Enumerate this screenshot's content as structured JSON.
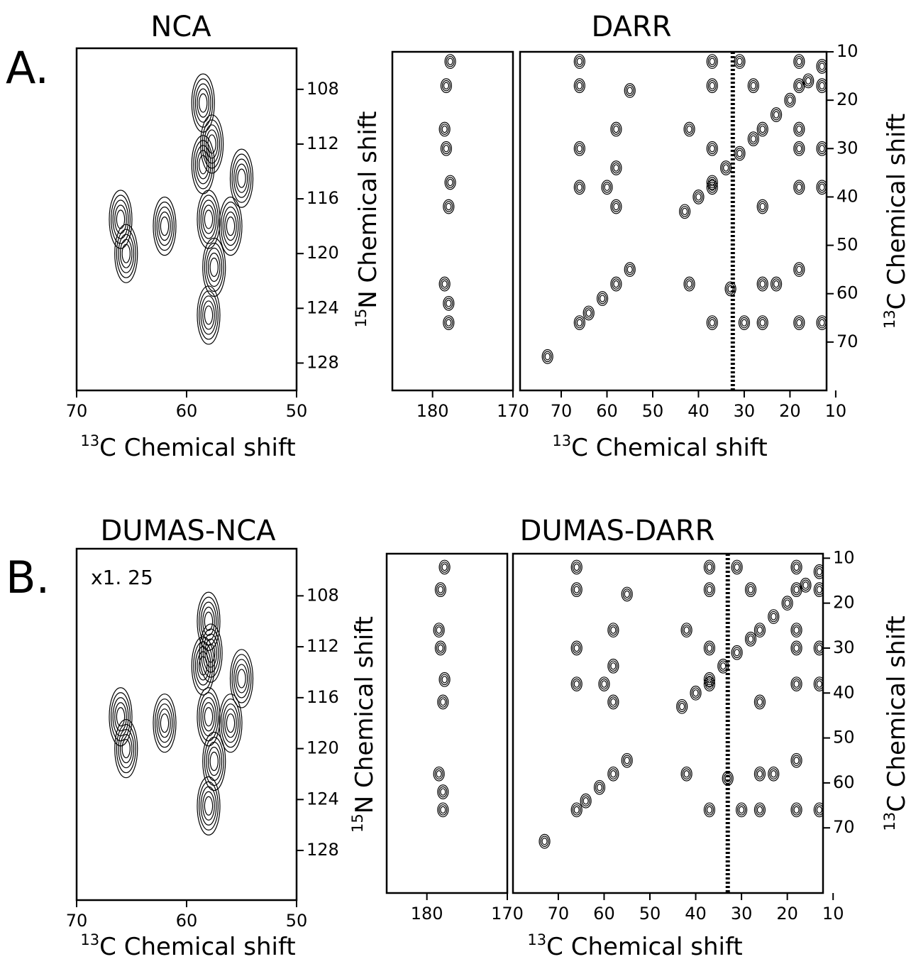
{
  "chart_data": [
    {
      "type": "contour",
      "panel_label": "A.",
      "title": "NCA",
      "xlabel_sup": "13",
      "xlabel": "C Chemical shift",
      "ylabel_sup": "15",
      "ylabel": "N Chemical shift",
      "xlim": [
        70,
        50
      ],
      "xticks": [
        70,
        60,
        50
      ],
      "ylim": [
        105,
        130
      ],
      "yticks": [
        108,
        112,
        116,
        120,
        124,
        128
      ],
      "color": "#000000",
      "peaks": {
        "x": [
          66,
          65.5,
          62,
          58,
          58.5,
          57.5,
          55,
          56,
          58.5,
          57.7,
          58
        ],
        "y": [
          117.5,
          120,
          118,
          117.5,
          113.5,
          121,
          114.5,
          118,
          109,
          112,
          124.5
        ]
      }
    },
    {
      "type": "contour",
      "title": "DARR",
      "xlabel_sup": "13",
      "xlabel": "C Chemical shift",
      "ylabel_sup": "13",
      "ylabel": "C Chemical shift",
      "ylim": [
        10,
        80
      ],
      "yticks": [
        10,
        20,
        30,
        40,
        50,
        60,
        70
      ],
      "color": "#000000",
      "ridge_x": 32.5,
      "panels": [
        {
          "xlim": [
            185,
            170
          ],
          "xticks": [
            180,
            170
          ],
          "peaks": {
            "x": [
              177.8,
              178.3,
              178.5,
              178.3,
              177.8,
              178,
              178.5,
              178,
              178
            ],
            "y": [
              12,
              17,
              26,
              30,
              37,
              42,
              58,
              62,
              66
            ]
          }
        },
        {
          "xlim": [
            79,
            12
          ],
          "xticks": [
            70,
            60,
            50,
            40,
            30,
            20,
            10
          ],
          "peaks": {
            "x": [
              66,
              66,
              55,
              58,
              66,
              58,
              66,
              58,
              60,
              42,
              37,
              37,
              37,
              37,
              42,
              37,
              31,
              28,
              26,
              23,
              26,
              26,
              18,
              18,
              18,
              18,
              18,
              13,
              13,
              13,
              18,
              18,
              13,
              30,
              33,
              73,
              13,
              16,
              20,
              23,
              26,
              28,
              31,
              34,
              37,
              40,
              43,
              55,
              58,
              61,
              64,
              66
            ],
            "y": [
              12,
              17,
              18,
              26,
              30,
              34,
              38,
              42,
              38,
              26,
              12,
              17,
              30,
              38,
              58,
              66,
              12,
              17,
              42,
              58,
              58,
              66,
              12,
              17,
              26,
              30,
              38,
              17,
              30,
              38,
              55,
              66,
              66,
              66,
              59,
              73,
              13,
              16,
              20,
              23,
              26,
              28,
              31,
              34,
              37,
              40,
              43,
              55,
              58,
              61,
              64,
              66
            ]
          }
        }
      ]
    },
    {
      "type": "contour",
      "panel_label": "B.",
      "title": "DUMAS-NCA",
      "annotation": "x1. 25",
      "xlabel_sup": "13",
      "xlabel": "C Chemical shift",
      "ylabel_sup": "15",
      "ylabel": "N Chemical shift",
      "xlim": [
        70,
        50
      ],
      "xticks": [
        70,
        60,
        50
      ],
      "ylim": [
        104.3,
        131.9
      ],
      "yticks": [
        108,
        112,
        116,
        120,
        124,
        128
      ],
      "color": "#000000",
      "peaks": {
        "x": [
          66,
          65.5,
          62,
          58,
          58.5,
          57.5,
          55,
          56,
          58,
          57.8,
          58
        ],
        "y": [
          117.5,
          120,
          118,
          117.5,
          113.5,
          121,
          114.5,
          118,
          110,
          112.5,
          124.5
        ]
      }
    },
    {
      "type": "contour",
      "title": "DUMAS-DARR",
      "xlabel_sup": "13",
      "xlabel": "C Chemical shift",
      "ylabel_sup": "13",
      "ylabel": "C Chemical shift",
      "ylim": [
        9,
        84.5
      ],
      "yticks": [
        10,
        20,
        30,
        40,
        50,
        60,
        70
      ],
      "color": "#000000",
      "ridge_x": 33,
      "panels": [
        {
          "xlim": [
            185,
            170
          ],
          "xticks": [
            180,
            170
          ],
          "peaks": {
            "x": [
              177.8,
              178.3,
              178.5,
              178.3,
              177.8,
              178,
              178.5,
              178,
              178
            ],
            "y": [
              12,
              17,
              26,
              30,
              37,
              42,
              58,
              62,
              66
            ]
          }
        },
        {
          "xlim": [
            79.9,
            12.2
          ],
          "xticks": [
            70,
            60,
            50,
            40,
            30,
            20,
            10
          ],
          "peaks": {
            "x": [
              66,
              66,
              55,
              58,
              66,
              58,
              66,
              58,
              60,
              42,
              37,
              37,
              37,
              37,
              42,
              37,
              31,
              28,
              26,
              23,
              26,
              26,
              18,
              18,
              18,
              18,
              18,
              13,
              13,
              13,
              18,
              18,
              13,
              30,
              33,
              73,
              13,
              16,
              20,
              23,
              26,
              28,
              31,
              34,
              37,
              40,
              43,
              55,
              58,
              61,
              64,
              66
            ],
            "y": [
              12,
              17,
              18,
              26,
              30,
              34,
              38,
              42,
              38,
              26,
              12,
              17,
              30,
              38,
              58,
              66,
              12,
              17,
              42,
              58,
              58,
              66,
              12,
              17,
              26,
              30,
              38,
              17,
              30,
              38,
              55,
              66,
              66,
              66,
              59,
              73,
              13,
              16,
              20,
              23,
              26,
              28,
              31,
              34,
              37,
              40,
              43,
              55,
              58,
              61,
              64,
              66
            ]
          }
        }
      ]
    }
  ]
}
